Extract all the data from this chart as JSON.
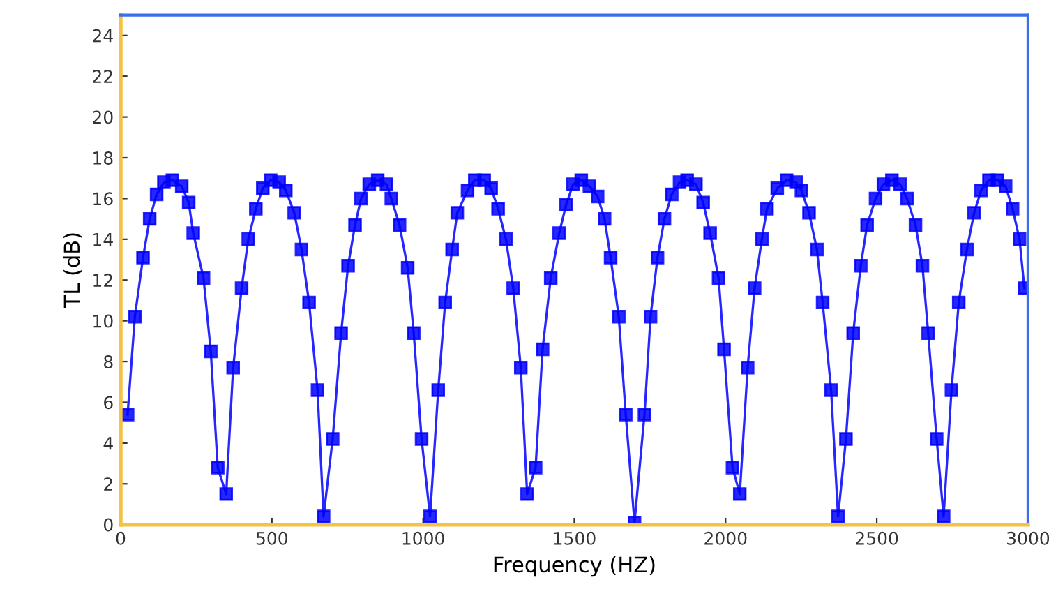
{
  "chart_data": {
    "type": "line",
    "xlabel": "Frequency (HZ)",
    "ylabel": "TL (dB)",
    "xlim": [
      0,
      3000
    ],
    "ylim": [
      0,
      25
    ],
    "xticks": [
      0,
      500,
      1000,
      1500,
      2000,
      2500,
      3000
    ],
    "yticks": [
      0,
      2,
      4,
      6,
      8,
      10,
      12,
      14,
      16,
      18,
      20,
      22,
      24
    ],
    "grid": false,
    "legend": false,
    "marker": "square",
    "line_style": "solid",
    "series": [
      {
        "color": "#0000ff",
        "x": [
          23,
          47,
          74,
          96,
          119,
          143,
          171,
          202,
          225,
          240,
          274,
          298,
          321,
          349,
          372,
          400,
          422,
          447,
          470,
          496,
          524,
          546,
          574,
          598,
          623,
          651,
          671,
          701,
          729,
          752,
          775,
          795,
          822,
          850,
          879,
          895,
          922,
          949,
          969,
          995,
          1023,
          1050,
          1073,
          1096,
          1113,
          1147,
          1171,
          1202,
          1225,
          1248,
          1274,
          1298,
          1323,
          1344,
          1372,
          1395,
          1422,
          1450,
          1473,
          1496,
          1523,
          1550,
          1577,
          1600,
          1620,
          1647,
          1670,
          1699,
          1732,
          1752,
          1775,
          1798,
          1822,
          1848,
          1873,
          1902,
          1926,
          1949,
          1977,
          1995,
          2023,
          2047,
          2073,
          2096,
          2120,
          2137,
          2171,
          2202,
          2233,
          2251,
          2276,
          2302,
          2321,
          2349,
          2372,
          2398,
          2422,
          2447,
          2468,
          2496,
          2522,
          2550,
          2577,
          2600,
          2628,
          2651,
          2670,
          2698,
          2721,
          2747,
          2771,
          2798,
          2822,
          2845,
          2871,
          2899,
          2926,
          2949,
          2972,
          2988
        ],
        "values": [
          5.4,
          10.2,
          13.1,
          15.0,
          16.2,
          16.8,
          16.9,
          16.6,
          15.8,
          14.3,
          12.1,
          8.5,
          2.8,
          1.5,
          7.7,
          11.6,
          14.0,
          15.5,
          16.5,
          16.9,
          16.8,
          16.4,
          15.3,
          13.5,
          10.9,
          6.6,
          0.4,
          4.2,
          9.4,
          12.7,
          14.7,
          16.0,
          16.7,
          16.9,
          16.7,
          16.0,
          14.7,
          12.6,
          9.4,
          4.2,
          0.4,
          6.6,
          10.9,
          13.5,
          15.3,
          16.4,
          16.9,
          16.9,
          16.5,
          15.5,
          14.0,
          11.6,
          7.7,
          1.5,
          2.8,
          8.6,
          12.1,
          14.3,
          15.7,
          16.7,
          16.9,
          16.6,
          16.1,
          15.0,
          13.1,
          10.2,
          5.4,
          0.1,
          5.4,
          10.2,
          13.1,
          15.0,
          16.2,
          16.8,
          16.9,
          16.7,
          15.8,
          14.3,
          12.1,
          8.6,
          2.8,
          1.5,
          7.7,
          11.6,
          14.0,
          15.5,
          16.5,
          16.9,
          16.8,
          16.4,
          15.3,
          13.5,
          10.9,
          6.6,
          0.4,
          4.2,
          9.4,
          12.7,
          14.7,
          16.0,
          16.7,
          16.9,
          16.7,
          16.0,
          14.7,
          12.7,
          9.4,
          4.2,
          0.4,
          6.6,
          10.9,
          13.5,
          15.3,
          16.4,
          16.9,
          16.9,
          16.6,
          15.5,
          14.0,
          11.6
        ]
      }
    ]
  }
}
